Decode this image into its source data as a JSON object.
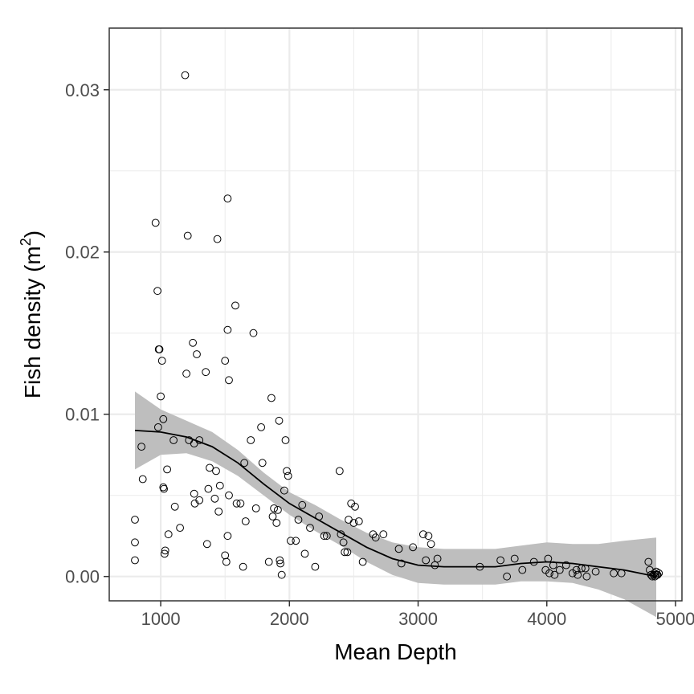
{
  "chart_data": {
    "type": "scatter",
    "title": "",
    "xlabel": "Mean Depth",
    "ylabel": "Fish density (m",
    "ylabel_sup": "2",
    "ylabel_close": ")",
    "xlim": [
      600,
      5050
    ],
    "ylim": [
      -0.0015,
      0.0338
    ],
    "x_ticks": [
      1000,
      2000,
      3000,
      4000,
      5000
    ],
    "x_tick_labels": [
      "1000",
      "2000",
      "3000",
      "4000",
      "5000"
    ],
    "y_ticks": [
      0.0,
      0.01,
      0.02,
      0.03
    ],
    "y_tick_labels": [
      "0.00",
      "0.01",
      "0.02",
      "0.03"
    ],
    "grid": true,
    "legend": "none",
    "points": [
      [
        800,
        0.0035
      ],
      [
        800,
        0.0021
      ],
      [
        800,
        0.001
      ],
      [
        850,
        0.008
      ],
      [
        860,
        0.006
      ],
      [
        960,
        0.0218
      ],
      [
        975,
        0.0176
      ],
      [
        985,
        0.014
      ],
      [
        990,
        0.014
      ],
      [
        1000,
        0.0111
      ],
      [
        980,
        0.0092
      ],
      [
        1010,
        0.0133
      ],
      [
        1020,
        0.0097
      ],
      [
        1020,
        0.0055
      ],
      [
        1025,
        0.0054
      ],
      [
        1030,
        0.0014
      ],
      [
        1035,
        0.0016
      ],
      [
        1050,
        0.0066
      ],
      [
        1060,
        0.0026
      ],
      [
        1100,
        0.0084
      ],
      [
        1110,
        0.0043
      ],
      [
        1150,
        0.003
      ],
      [
        1190,
        0.0309
      ],
      [
        1200,
        0.0125
      ],
      [
        1210,
        0.021
      ],
      [
        1220,
        0.0084
      ],
      [
        1250,
        0.0144
      ],
      [
        1260,
        0.0082
      ],
      [
        1260,
        0.0051
      ],
      [
        1265,
        0.0045
      ],
      [
        1280,
        0.0137
      ],
      [
        1300,
        0.0084
      ],
      [
        1300,
        0.0047
      ],
      [
        1350,
        0.0126
      ],
      [
        1360,
        0.002
      ],
      [
        1370,
        0.0054
      ],
      [
        1380,
        0.0067
      ],
      [
        1420,
        0.0048
      ],
      [
        1430,
        0.0065
      ],
      [
        1440,
        0.0208
      ],
      [
        1450,
        0.004
      ],
      [
        1460,
        0.0056
      ],
      [
        1500,
        0.0133
      ],
      [
        1500,
        0.0013
      ],
      [
        1510,
        0.0009
      ],
      [
        1520,
        0.0233
      ],
      [
        1520,
        0.0152
      ],
      [
        1520,
        0.0025
      ],
      [
        1530,
        0.0121
      ],
      [
        1530,
        0.005
      ],
      [
        1580,
        0.0167
      ],
      [
        1590,
        0.0045
      ],
      [
        1620,
        0.0045
      ],
      [
        1640,
        0.0006
      ],
      [
        1650,
        0.007
      ],
      [
        1660,
        0.0034
      ],
      [
        1700,
        0.0084
      ],
      [
        1720,
        0.015
      ],
      [
        1740,
        0.0042
      ],
      [
        1780,
        0.0092
      ],
      [
        1790,
        0.007
      ],
      [
        1840,
        0.0009
      ],
      [
        1860,
        0.011
      ],
      [
        1870,
        0.0037
      ],
      [
        1880,
        0.0042
      ],
      [
        1900,
        0.0033
      ],
      [
        1910,
        0.0041
      ],
      [
        1920,
        0.0096
      ],
      [
        1925,
        0.001
      ],
      [
        1930,
        0.0008
      ],
      [
        1940,
        0.0001
      ],
      [
        1960,
        0.0053
      ],
      [
        1970,
        0.0084
      ],
      [
        1980,
        0.0065
      ],
      [
        1990,
        0.0062
      ],
      [
        2010,
        0.0022
      ],
      [
        2050,
        0.0022
      ],
      [
        2070,
        0.0035
      ],
      [
        2100,
        0.0044
      ],
      [
        2120,
        0.0014
      ],
      [
        2160,
        0.003
      ],
      [
        2200,
        0.0006
      ],
      [
        2230,
        0.0037
      ],
      [
        2270,
        0.0025
      ],
      [
        2290,
        0.0025
      ],
      [
        2390,
        0.0065
      ],
      [
        2400,
        0.0026
      ],
      [
        2420,
        0.0021
      ],
      [
        2430,
        0.0015
      ],
      [
        2450,
        0.0015
      ],
      [
        2460,
        0.0035
      ],
      [
        2480,
        0.0045
      ],
      [
        2500,
        0.0033
      ],
      [
        2510,
        0.0043
      ],
      [
        2540,
        0.0034
      ],
      [
        2570,
        0.0009
      ],
      [
        2650,
        0.0026
      ],
      [
        2670,
        0.0024
      ],
      [
        2730,
        0.0026
      ],
      [
        2850,
        0.0017
      ],
      [
        2870,
        0.0008
      ],
      [
        2960,
        0.0018
      ],
      [
        3040,
        0.0026
      ],
      [
        3060,
        0.001
      ],
      [
        3080,
        0.0025
      ],
      [
        3100,
        0.002
      ],
      [
        3130,
        0.0007
      ],
      [
        3150,
        0.0011
      ],
      [
        3480,
        0.0006
      ],
      [
        3640,
        0.001
      ],
      [
        3690,
        0.0
      ],
      [
        3750,
        0.0011
      ],
      [
        3810,
        0.0004
      ],
      [
        3900,
        0.0009
      ],
      [
        3990,
        0.0004
      ],
      [
        4010,
        0.0011
      ],
      [
        4020,
        0.0002
      ],
      [
        4050,
        0.0007
      ],
      [
        4060,
        0.0001
      ],
      [
        4100,
        0.0004
      ],
      [
        4150,
        0.0007
      ],
      [
        4200,
        0.0002
      ],
      [
        4230,
        0.0004
      ],
      [
        4240,
        0.0001
      ],
      [
        4270,
        0.0005
      ],
      [
        4300,
        0.0005
      ],
      [
        4310,
        0.0
      ],
      [
        4380,
        0.0003
      ],
      [
        4520,
        0.0002
      ],
      [
        4580,
        0.0002
      ],
      [
        4790,
        0.0009
      ],
      [
        4800,
        0.0004
      ],
      [
        4810,
        0.0001
      ],
      [
        4820,
        0.0
      ],
      [
        4830,
        0.0001
      ],
      [
        4835,
        0.0002
      ],
      [
        4840,
        0.0
      ],
      [
        4845,
        0.0001
      ],
      [
        4850,
        0.0003
      ],
      [
        4855,
        0.0001
      ],
      [
        4860,
        0.0001
      ],
      [
        4870,
        0.0002
      ]
    ],
    "smooth": {
      "x": [
        800,
        1000,
        1200,
        1400,
        1600,
        1800,
        2000,
        2200,
        2400,
        2600,
        2800,
        3000,
        3200,
        3400,
        3600,
        3800,
        4000,
        4200,
        4400,
        4600,
        4850
      ],
      "y": [
        0.009,
        0.0089,
        0.0086,
        0.008,
        0.007,
        0.0057,
        0.0045,
        0.0036,
        0.0027,
        0.0018,
        0.0011,
        0.0007,
        0.0006,
        0.0006,
        0.0006,
        0.0008,
        0.0009,
        0.0008,
        0.0006,
        0.0004,
        0.0
      ],
      "lower": [
        0.0066,
        0.0075,
        0.0076,
        0.0071,
        0.0062,
        0.005,
        0.0038,
        0.0028,
        0.0019,
        0.0009,
        0.0001,
        -0.0004,
        -0.0005,
        -0.0005,
        -0.0005,
        -0.0003,
        -0.0003,
        -0.0004,
        -0.0008,
        -0.0014,
        -0.0025
      ],
      "upper": [
        0.0114,
        0.0103,
        0.0096,
        0.0089,
        0.0078,
        0.0064,
        0.0052,
        0.0044,
        0.0035,
        0.0027,
        0.0021,
        0.0018,
        0.0017,
        0.0017,
        0.0017,
        0.0019,
        0.0021,
        0.002,
        0.002,
        0.0022,
        0.0024
      ]
    },
    "colors": {
      "band": "#bebebe",
      "line": "#000000",
      "point_stroke": "#000000",
      "grid": "#ebebeb",
      "border": "#333333",
      "tick_label": "#4d4d4d"
    }
  }
}
